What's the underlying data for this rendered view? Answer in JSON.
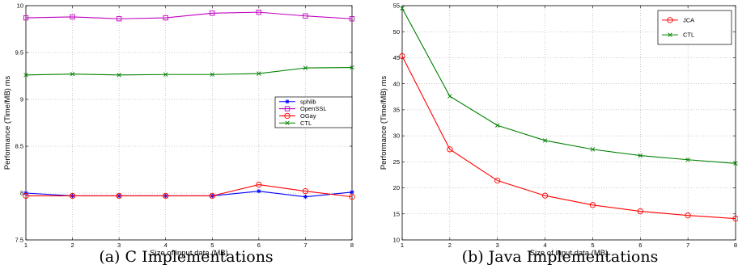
{
  "chart_data": [
    {
      "type": "line",
      "caption": "(a) C Implementations",
      "xlabel": "Size of input data (MB)",
      "ylabel": "Performance (Time/MB) ms",
      "x": [
        1,
        2,
        3,
        4,
        5,
        6,
        7,
        8
      ],
      "xlim": [
        1,
        8
      ],
      "ylim": [
        7.5,
        10
      ],
      "yticks": [
        "7.5",
        "8",
        "8.5",
        "9",
        "9.5",
        "10"
      ],
      "grid": true,
      "legend_position": "center-right",
      "series": [
        {
          "name": "sphlib",
          "color": "#0000ff",
          "marker": "star",
          "values": [
            8.0,
            7.97,
            7.97,
            7.97,
            7.97,
            8.02,
            7.96,
            8.01
          ]
        },
        {
          "name": "OpenSSL",
          "color": "#bf00bf",
          "marker": "square",
          "values": [
            9.87,
            9.88,
            9.86,
            9.87,
            9.92,
            9.93,
            9.89,
            9.86
          ]
        },
        {
          "name": "OGay",
          "color": "#ff0000",
          "marker": "circle",
          "values": [
            7.97,
            7.97,
            7.97,
            7.97,
            7.97,
            8.09,
            8.02,
            7.96
          ]
        },
        {
          "name": "CTL",
          "color": "#008000",
          "marker": "x",
          "values": [
            9.26,
            9.27,
            9.26,
            9.265,
            9.265,
            9.275,
            9.335,
            9.34
          ]
        }
      ]
    },
    {
      "type": "line",
      "caption": "(b) Java Implementations",
      "xlabel": "Size of input data (MB)",
      "ylabel": "Performance (Time/MB) ms",
      "x": [
        1,
        2,
        3,
        4,
        5,
        6,
        7,
        8
      ],
      "xlim": [
        1,
        8
      ],
      "ylim": [
        10,
        55
      ],
      "yticks": [
        "10",
        "15",
        "20",
        "25",
        "30",
        "35",
        "40",
        "45",
        "50",
        "55"
      ],
      "grid": true,
      "legend_position": "top-right",
      "series": [
        {
          "name": "JCA",
          "color": "#ff0000",
          "marker": "circle",
          "values": [
            45.3,
            27.4,
            21.4,
            18.5,
            16.7,
            15.5,
            14.7,
            14.1
          ]
        },
        {
          "name": "CTL",
          "color": "#008000",
          "marker": "x",
          "values": [
            54.5,
            37.6,
            32.0,
            29.1,
            27.4,
            26.2,
            25.4,
            24.7
          ]
        }
      ]
    }
  ]
}
